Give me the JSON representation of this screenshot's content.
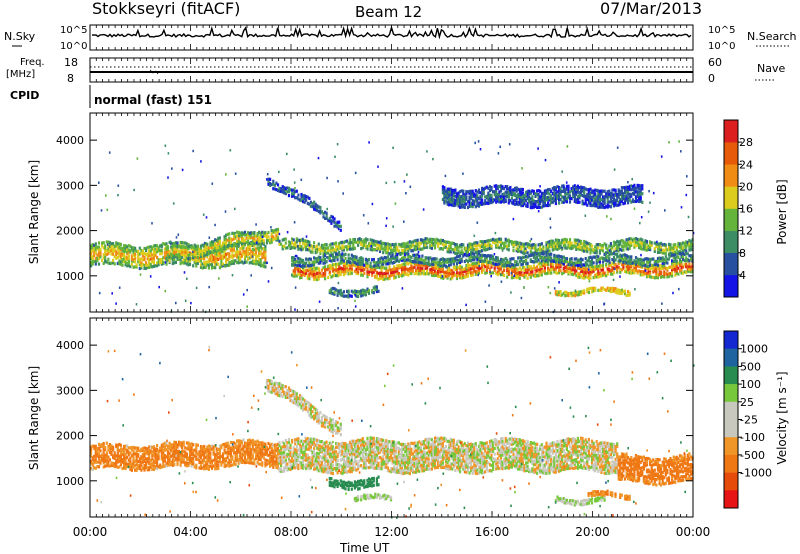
{
  "header": {
    "station": "Stokkseyri (fitACF)",
    "beam": "Beam 12",
    "date": "07/Mar/2013"
  },
  "noise_panel": {
    "left_label": "N.Sky",
    "right_label": "N.Search",
    "left_ticks": [
      "10^5",
      "10^0"
    ],
    "right_ticks": [
      "10^5",
      "10^0"
    ]
  },
  "freq_panel": {
    "left_label_line1": "Freq.",
    "left_label_line2": "[MHz]",
    "right_label": "Nave",
    "left_ticks": [
      "18",
      "8"
    ],
    "right_ticks": [
      "60",
      "0"
    ]
  },
  "cpid": {
    "label": "CPID",
    "value": "normal (fast) 151"
  },
  "power_panel": {
    "ylabel": "Slant Range [km]",
    "yticks": [
      "4000",
      "3000",
      "2000",
      "1000"
    ],
    "colorbar_label": "Power [dB]",
    "colorbar_ticks": [
      "28",
      "24",
      "20",
      "16",
      "12",
      "8",
      "4"
    ],
    "colors": [
      "#1414e6",
      "#2850a0",
      "#3c8c64",
      "#64b43c",
      "#dccc1e",
      "#f08c14",
      "#e65a0a",
      "#dc1e1e"
    ]
  },
  "velocity_panel": {
    "ylabel": "Slant Range [km]",
    "yticks": [
      "4000",
      "3000",
      "2000",
      "1000"
    ],
    "colorbar_label": "Velocity [m s⁻¹]",
    "colorbar_ticks": [
      "1000",
      "500",
      "100",
      "25",
      "-25",
      "-100",
      "-500",
      "-1000"
    ],
    "colors": [
      "#1428d2",
      "#1e64a0",
      "#288c50",
      "#78c83c",
      "#c8c8be",
      "#c8c8be",
      "#f09628",
      "#f07814",
      "#e64b0a",
      "#e61414"
    ]
  },
  "x_axis": {
    "label": "Time UT",
    "ticks": [
      "00:00",
      "04:00",
      "08:00",
      "12:00",
      "16:00",
      "20:00",
      "00:00"
    ]
  },
  "chart_data": [
    {
      "type": "heatmap",
      "title": "Stokkseyri (fitACF) Beam 12 07/Mar/2013",
      "quantity": "Power",
      "units": "dB",
      "xlabel": "Time UT",
      "ylabel": "Slant Range [km]",
      "xlim_hours": [
        0,
        24
      ],
      "ylim_km": [
        200,
        4600
      ],
      "color_scale": [
        0,
        32
      ],
      "bands": [
        {
          "t_start": 0.0,
          "t_end": 7.0,
          "range_center_km": [
            1500,
            1500
          ],
          "width_km": 500,
          "value_db": 22
        },
        {
          "t_start": 3.0,
          "t_end": 7.5,
          "range_center_km": [
            1500,
            2000
          ],
          "width_km": 300,
          "value_db": 20
        },
        {
          "t_start": 7.5,
          "t_end": 24.0,
          "range_center_km": [
            1700,
            1700
          ],
          "width_km": 250,
          "value_db": 18
        },
        {
          "t_start": 8.0,
          "t_end": 24.0,
          "range_center_km": [
            1150,
            1200
          ],
          "width_km": 300,
          "value_db": 28
        },
        {
          "t_start": 8.0,
          "t_end": 24.0,
          "range_center_km": [
            1400,
            1400
          ],
          "width_km": 200,
          "value_db": 12
        },
        {
          "t_start": 18.5,
          "t_end": 21.5,
          "range_center_km": [
            700,
            700
          ],
          "width_km": 120,
          "value_db": 24
        },
        {
          "t_start": 9.5,
          "t_end": 11.5,
          "range_center_km": [
            700,
            700
          ],
          "width_km": 150,
          "value_db": 12
        },
        {
          "t_start": 7.0,
          "t_end": 10.0,
          "range_center_km": [
            3200,
            2200
          ],
          "width_km": 200,
          "value_db": 8
        },
        {
          "t_start": 14.0,
          "t_end": 22.0,
          "range_center_km": [
            2800,
            2800
          ],
          "width_km": 400,
          "value_db": 8
        }
      ]
    },
    {
      "type": "heatmap",
      "title": "Stokkseyri (fitACF) Beam 12 07/Mar/2013",
      "quantity": "Velocity",
      "units": "m s-1",
      "xlabel": "Time UT",
      "ylabel": "Slant Range [km]",
      "xlim_hours": [
        0,
        24
      ],
      "ylim_km": [
        200,
        4600
      ],
      "bands": [
        {
          "t_start": 0.0,
          "t_end": 7.5,
          "range_center_km": [
            1550,
            1650
          ],
          "width_km": 550,
          "value_ms": -150
        },
        {
          "t_start": 7.5,
          "t_end": 21.0,
          "range_center_km": [
            1600,
            1600
          ],
          "width_km": 700,
          "value_ms": 0
        },
        {
          "t_start": 7.0,
          "t_end": 10.0,
          "range_center_km": [
            3200,
            2200
          ],
          "width_km": 300,
          "value_ms": 0
        },
        {
          "t_start": 21.0,
          "t_end": 24.0,
          "range_center_km": [
            1300,
            1300
          ],
          "width_km": 600,
          "value_ms": -200
        },
        {
          "t_start": 18.5,
          "t_end": 20.5,
          "range_center_km": [
            620,
            620
          ],
          "width_km": 120,
          "value_ms": 50
        },
        {
          "t_start": 19.8,
          "t_end": 21.5,
          "range_center_km": [
            720,
            720
          ],
          "width_km": 120,
          "value_ms": -120
        },
        {
          "t_start": 9.5,
          "t_end": 11.5,
          "range_center_km": [
            1000,
            1000
          ],
          "width_km": 200,
          "value_ms": 300
        },
        {
          "t_start": 10.5,
          "t_end": 12.0,
          "range_center_km": [
            650,
            650
          ],
          "width_km": 120,
          "value_ms": 50
        }
      ]
    }
  ]
}
